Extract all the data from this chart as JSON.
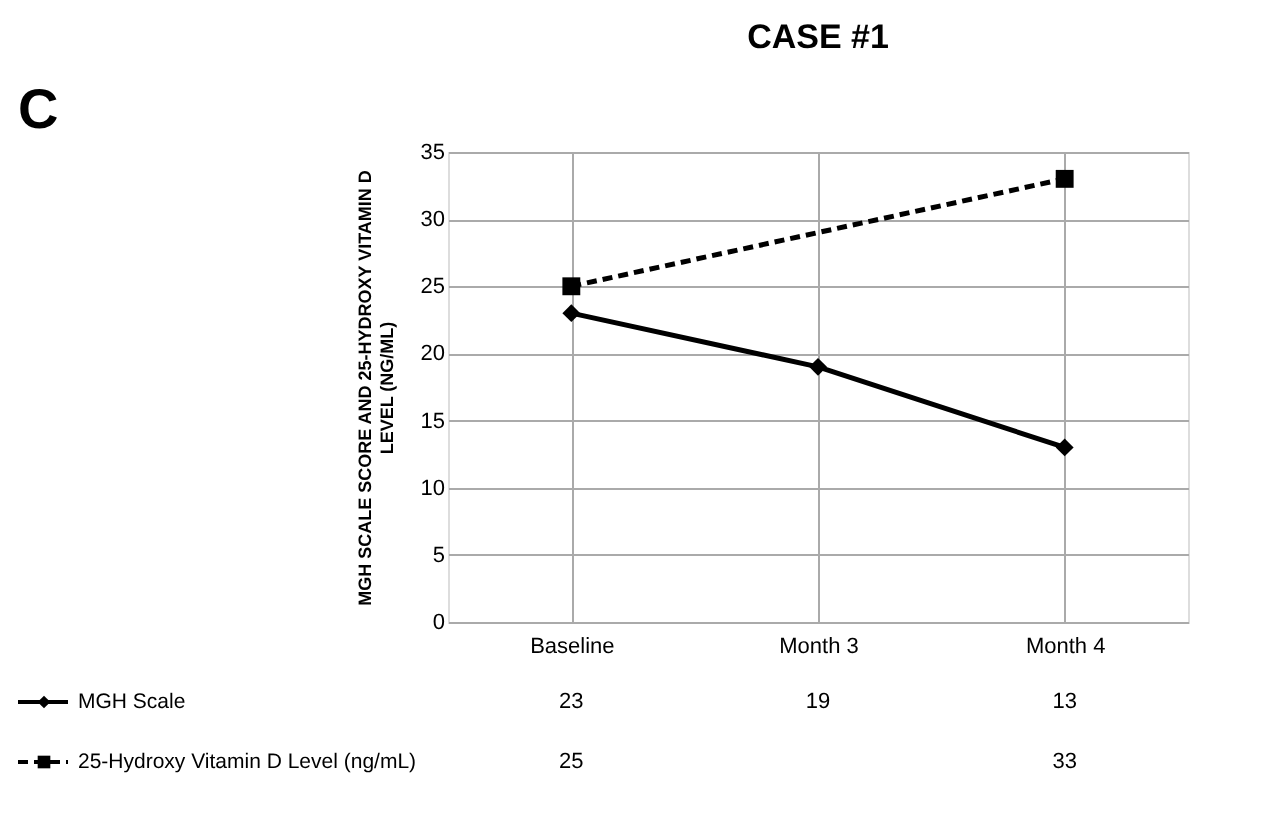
{
  "chart_data": {
    "type": "line",
    "title": "CASE #1",
    "ylabel": "MGH SCALE SCORE AND 25-HYDROXY VITAMIN D LEVEL (NG/ML)",
    "annotations": [
      "C"
    ],
    "categories": [
      "Baseline",
      "Month 3",
      "Month 4"
    ],
    "series": [
      {
        "name": "MGH Scale",
        "color": "#000000",
        "values": [
          23,
          19,
          13
        ],
        "marker": "diamond",
        "line_style": "solid"
      },
      {
        "name": "25-Hydroxy Vitamin D Level (ng/mL)",
        "color": "#000000",
        "values": [
          25,
          null,
          33
        ],
        "marker": "square",
        "line_style": "dashed"
      }
    ],
    "ylim": [
      0,
      35
    ],
    "yticks": [
      0,
      5,
      10,
      15,
      20,
      25,
      30,
      35
    ],
    "grid": true,
    "legend": "bottom",
    "data_labels": true
  }
}
